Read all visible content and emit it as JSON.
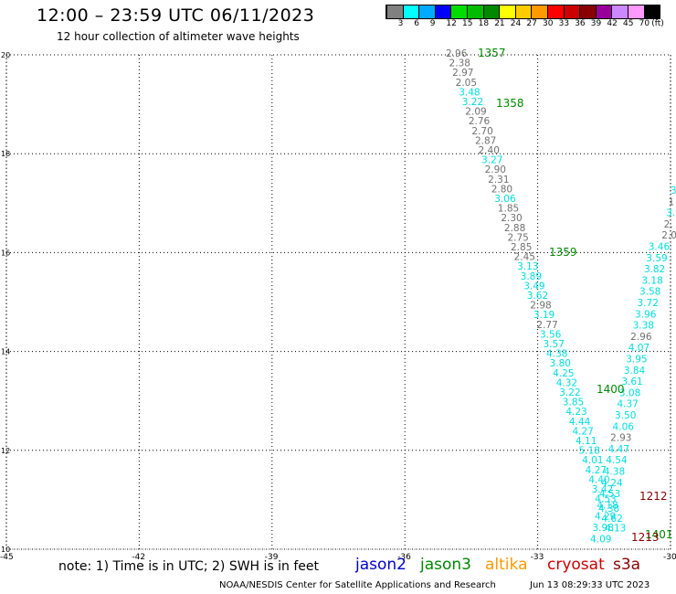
{
  "title": "12:00 – 23:59 UTC 06/11/2023",
  "subtitle": "12 hour collection of altimeter wave heights",
  "legend": {
    "colors": [
      "#808080",
      "#00ffff",
      "#00aaff",
      "#0000ff",
      "#00dd00",
      "#00bb00",
      "#008800",
      "#ffff00",
      "#ffcc00",
      "#ff9900",
      "#ff0000",
      "#cc0000",
      "#880000",
      "#990099",
      "#cc88ff",
      "#ff99ff",
      "#000000"
    ],
    "labels": [
      "3",
      "6",
      "9",
      "12",
      "15",
      "18",
      "21",
      "24",
      "27",
      "30",
      "33",
      "36",
      "39",
      "42",
      "45",
      "70",
      "(ft)"
    ]
  },
  "axes": {
    "x_ticks": [
      "-45",
      "-42",
      "-39",
      "-36",
      "-33",
      "-30"
    ],
    "y_ticks": [
      "20",
      "18",
      "16",
      "14",
      "12",
      "10"
    ]
  },
  "note": "note: 1) Time is in UTC; 2) SWH is in feet",
  "satellites": [
    {
      "name": "jason2",
      "color": "#0000cc"
    },
    {
      "name": "jason3",
      "color": "#008800"
    },
    {
      "name": "altika",
      "color": "#ff9900"
    },
    {
      "name": "cryosat",
      "color": "#cc0000"
    },
    {
      "name": "s3a",
      "color": "#880000"
    }
  ],
  "footer_left": "NOAA/NESDIS Center for Satellite Applications and Research",
  "footer_right": "Jun 13 08:29:33 UTC 2023",
  "track1": [
    "2.96",
    "2.38",
    "2.97",
    "2.05",
    "3.48",
    "3.22",
    "2.09",
    "2.76",
    "2.70",
    "2.87",
    "2.40",
    "3.27",
    "2.90",
    "2.31",
    "2.80",
    "3.06",
    "1.85",
    "2.30",
    "2.88",
    "2.75",
    "2.85",
    "2.45",
    "3.13",
    "3.89",
    "3.49",
    "3.62",
    "2.98",
    "3.19",
    "2.77",
    "3.56",
    "3.57",
    "4.38",
    "3.80",
    "4.25",
    "4.32",
    "3.22",
    "3.85",
    "4.23",
    "4.44",
    "4.27",
    "4.11",
    "5.18",
    "4.01",
    "4.27",
    "4.40",
    "3.42",
    "4.53",
    "4.38",
    "4.62",
    "4.13"
  ],
  "track1_colors": [
    "g",
    "g",
    "g",
    "g",
    "c",
    "c",
    "g",
    "g",
    "g",
    "g",
    "g",
    "c",
    "g",
    "g",
    "g",
    "c",
    "g",
    "g",
    "g",
    "g",
    "g",
    "g",
    "c",
    "c",
    "c",
    "c",
    "g",
    "c",
    "g",
    "c",
    "c",
    "c",
    "c",
    "c",
    "c",
    "c",
    "c",
    "c",
    "c",
    "c",
    "c",
    "c",
    "c",
    "c",
    "c",
    "c",
    "c",
    "c",
    "c",
    "c"
  ],
  "track2": [
    "3.",
    "1",
    "3.",
    "2.",
    "2.0",
    "3.46",
    "3.59",
    "3.82",
    "3.18",
    "3.58",
    "3.72",
    "3.96",
    "3.38",
    "2.96",
    "4.07",
    "3.95",
    "3.84",
    "3.61",
    "3.08",
    "4.37",
    "3.50",
    "4.06",
    "2.93",
    "4.47",
    "4.54",
    "4.38",
    "4.24",
    "4.53",
    "4.18",
    "4.29",
    "3.98",
    "4.09"
  ],
  "track2_colors": [
    "c",
    "g",
    "c",
    "g",
    "g",
    "c",
    "c",
    "c",
    "c",
    "c",
    "c",
    "c",
    "c",
    "g",
    "c",
    "c",
    "c",
    "c",
    "c",
    "c",
    "c",
    "c",
    "g",
    "c",
    "c",
    "c",
    "c",
    "c",
    "c",
    "c",
    "c",
    "c"
  ],
  "time_labels": [
    {
      "text": "1357",
      "color": "#008800"
    },
    {
      "text": "1358",
      "color": "#008800"
    },
    {
      "text": "1359",
      "color": "#008800"
    },
    {
      "text": "1400",
      "color": "#008800"
    },
    {
      "text": "1401",
      "color": "#008800"
    },
    {
      "text": "1212",
      "color": "#880000"
    },
    {
      "text": "1213",
      "color": "#880000"
    }
  ]
}
